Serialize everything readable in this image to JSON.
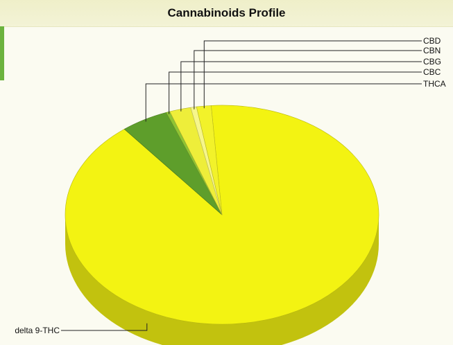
{
  "chart_data": {
    "type": "pie",
    "title": "Cannabinoids Profile",
    "slices": [
      {
        "label": "delta 9-THC",
        "value": 90.4,
        "color": "#f3f312"
      },
      {
        "label": "THCA",
        "value": 4.9,
        "color": "#5e9e2b"
      },
      {
        "label": "CBC",
        "value": 0.4,
        "color": "#8ec434"
      },
      {
        "label": "CBG",
        "value": 2.2,
        "color": "#eeee3a"
      },
      {
        "label": "CBN",
        "value": 0.6,
        "color": "#f6f68a"
      },
      {
        "label": "CBD",
        "value": 1.5,
        "color": "#f2f22a"
      }
    ],
    "legend": "callout-labels",
    "style": "3d-tilted"
  }
}
